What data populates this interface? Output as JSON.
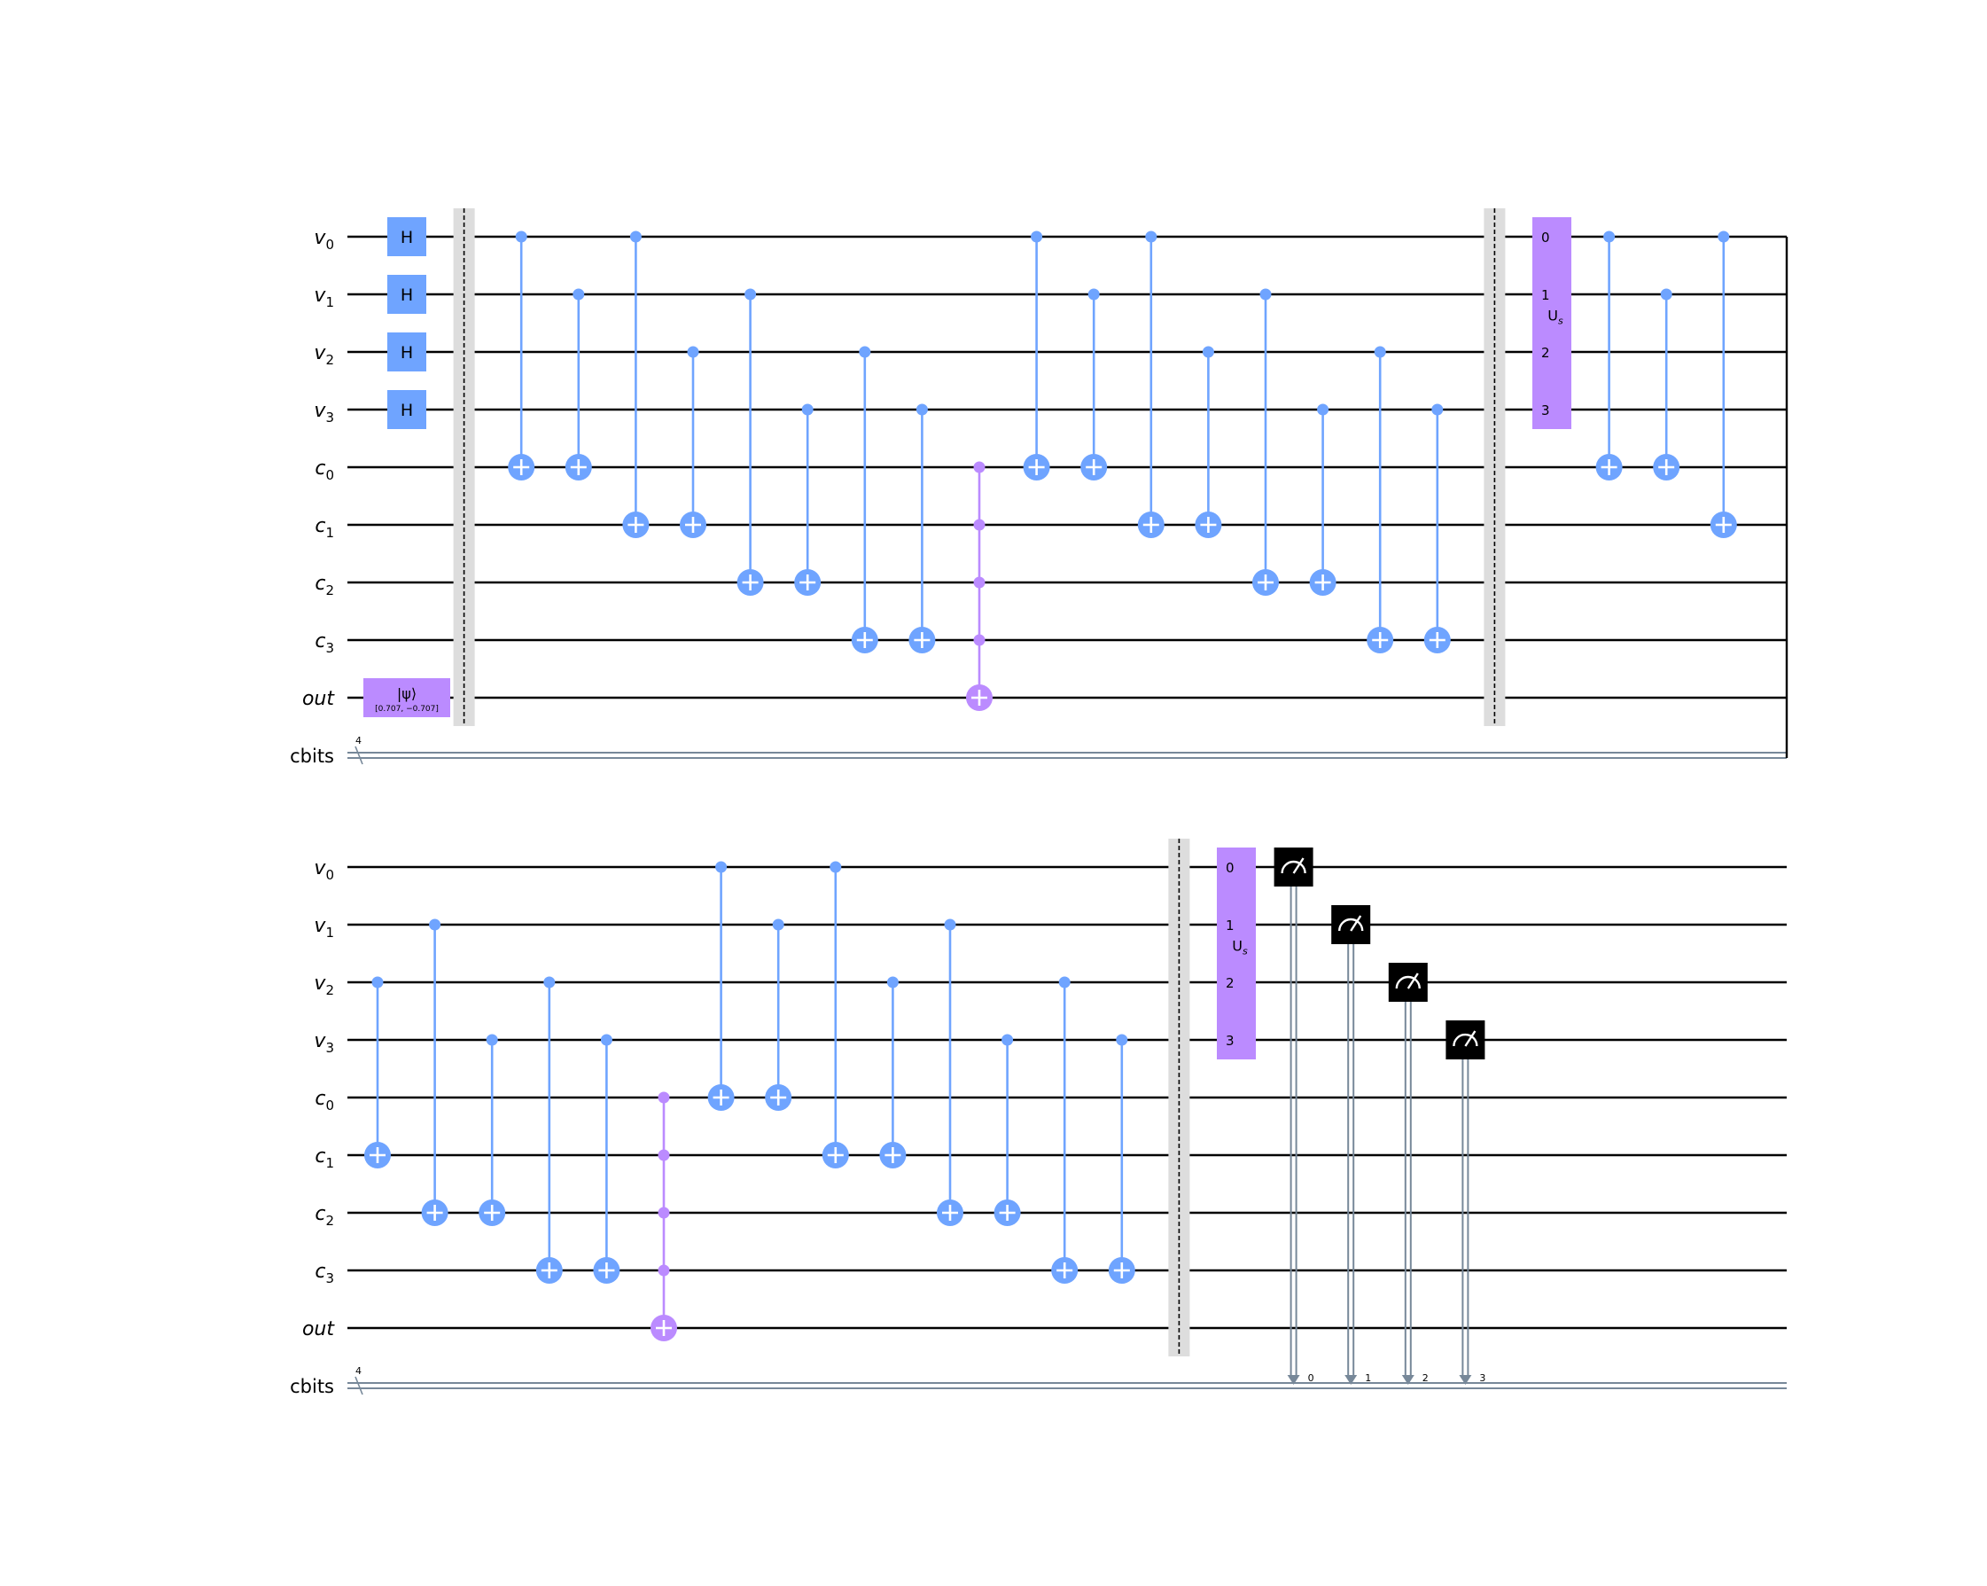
{
  "colors": {
    "wire": "#000000",
    "classical_wire": "#778899",
    "gate": "#6fa4ff",
    "multi": "#bb8bff",
    "barrier": "#dddddd",
    "measure": "#000000",
    "text_on_gate": "#000000"
  },
  "rows": {
    "qubit_wires": [
      {
        "base": "v",
        "sub": "0"
      },
      {
        "base": "v",
        "sub": "1"
      },
      {
        "base": "v",
        "sub": "2"
      },
      {
        "base": "v",
        "sub": "3"
      },
      {
        "base": "c",
        "sub": "0"
      },
      {
        "base": "c",
        "sub": "1"
      },
      {
        "base": "c",
        "sub": "2"
      },
      {
        "base": "c",
        "sub": "3"
      },
      {
        "base": "out",
        "sub": ""
      }
    ],
    "classical_register": {
      "label": "cbits",
      "size_label": "4"
    }
  },
  "gate_labels": {
    "hadamard": "H",
    "initialize_main": "|ψ⟩",
    "initialize_params": "[0.707, −0.707]",
    "diffuser_base": "U",
    "diffuser_sub": "s",
    "diffuser_port_labels": [
      "0",
      "1",
      "2",
      "3"
    ]
  },
  "panels": [
    {
      "ops": [
        {
          "type": "h",
          "col": 0,
          "wires": [
            0,
            1,
            2,
            3
          ]
        },
        {
          "type": "init",
          "col": 0,
          "wire": 8
        },
        {
          "type": "barrier",
          "col": 1
        },
        {
          "type": "cx",
          "col": 2,
          "ctrl": 0,
          "tgt": 4
        },
        {
          "type": "cx",
          "col": 3,
          "ctrl": 1,
          "tgt": 4
        },
        {
          "type": "cx",
          "col": 4,
          "ctrl": 0,
          "tgt": 5
        },
        {
          "type": "cx",
          "col": 5,
          "ctrl": 2,
          "tgt": 5
        },
        {
          "type": "cx",
          "col": 6,
          "ctrl": 1,
          "tgt": 6
        },
        {
          "type": "cx",
          "col": 7,
          "ctrl": 3,
          "tgt": 6
        },
        {
          "type": "cx",
          "col": 8,
          "ctrl": 2,
          "tgt": 7
        },
        {
          "type": "cx",
          "col": 9,
          "ctrl": 3,
          "tgt": 7
        },
        {
          "type": "mcx",
          "col": 10,
          "ctrls": [
            4,
            5,
            6,
            7
          ],
          "tgt": 8
        },
        {
          "type": "cx",
          "col": 11,
          "ctrl": 0,
          "tgt": 4
        },
        {
          "type": "cx",
          "col": 12,
          "ctrl": 1,
          "tgt": 4
        },
        {
          "type": "cx",
          "col": 13,
          "ctrl": 0,
          "tgt": 5
        },
        {
          "type": "cx",
          "col": 14,
          "ctrl": 2,
          "tgt": 5
        },
        {
          "type": "cx",
          "col": 15,
          "ctrl": 1,
          "tgt": 6
        },
        {
          "type": "cx",
          "col": 16,
          "ctrl": 3,
          "tgt": 6
        },
        {
          "type": "cx",
          "col": 17,
          "ctrl": 2,
          "tgt": 7
        },
        {
          "type": "cx",
          "col": 18,
          "ctrl": 3,
          "tgt": 7
        },
        {
          "type": "barrier",
          "col": 19
        },
        {
          "type": "diffuser",
          "col": 20
        },
        {
          "type": "cx",
          "col": 21,
          "ctrl": 0,
          "tgt": 4
        },
        {
          "type": "cx",
          "col": 22,
          "ctrl": 1,
          "tgt": 4
        },
        {
          "type": "cx",
          "col": 23,
          "ctrl": 0,
          "tgt": 5
        }
      ]
    },
    {
      "ops": [
        {
          "type": "cx",
          "col": 0,
          "ctrl": 2,
          "tgt": 5
        },
        {
          "type": "cx",
          "col": 1,
          "ctrl": 1,
          "tgt": 6
        },
        {
          "type": "cx",
          "col": 2,
          "ctrl": 3,
          "tgt": 6
        },
        {
          "type": "cx",
          "col": 3,
          "ctrl": 2,
          "tgt": 7
        },
        {
          "type": "cx",
          "col": 4,
          "ctrl": 3,
          "tgt": 7
        },
        {
          "type": "mcx",
          "col": 5,
          "ctrls": [
            4,
            5,
            6,
            7
          ],
          "tgt": 8
        },
        {
          "type": "cx",
          "col": 6,
          "ctrl": 0,
          "tgt": 4
        },
        {
          "type": "cx",
          "col": 7,
          "ctrl": 1,
          "tgt": 4
        },
        {
          "type": "cx",
          "col": 8,
          "ctrl": 0,
          "tgt": 5
        },
        {
          "type": "cx",
          "col": 9,
          "ctrl": 2,
          "tgt": 5
        },
        {
          "type": "cx",
          "col": 10,
          "ctrl": 1,
          "tgt": 6
        },
        {
          "type": "cx",
          "col": 11,
          "ctrl": 3,
          "tgt": 6
        },
        {
          "type": "cx",
          "col": 12,
          "ctrl": 2,
          "tgt": 7
        },
        {
          "type": "cx",
          "col": 13,
          "ctrl": 3,
          "tgt": 7
        },
        {
          "type": "barrier",
          "col": 14
        },
        {
          "type": "diffuser",
          "col": 15
        },
        {
          "type": "measure",
          "col": 16,
          "wire": 0,
          "bit": "0"
        },
        {
          "type": "measure",
          "col": 17,
          "wire": 1,
          "bit": "1"
        },
        {
          "type": "measure",
          "col": 18,
          "wire": 2,
          "bit": "2"
        },
        {
          "type": "measure",
          "col": 19,
          "wire": 3,
          "bit": "3"
        }
      ]
    }
  ]
}
